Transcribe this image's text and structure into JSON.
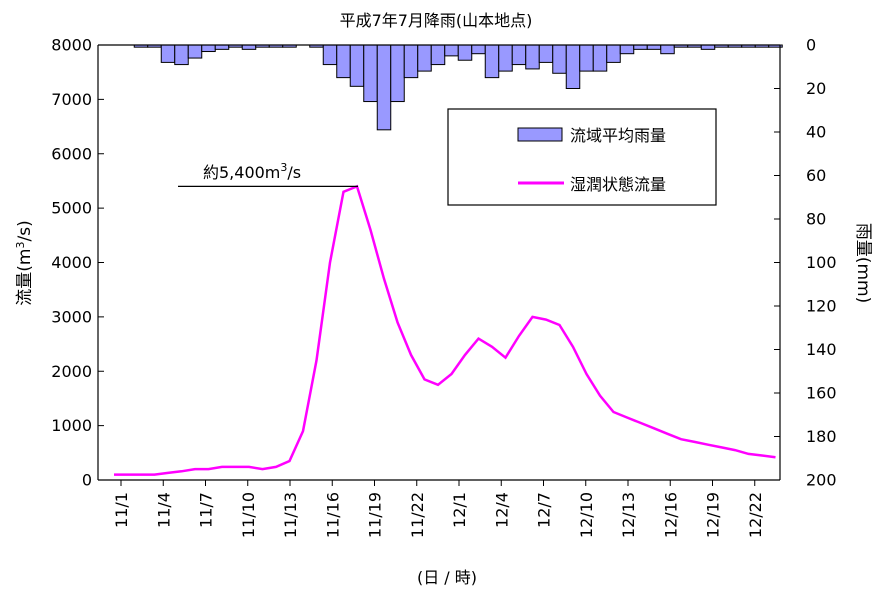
{
  "chart_data": {
    "type": "line",
    "title": "平成7年7月降雨(山本地点)",
    "xlabel": "(日 / 時)",
    "ylabel": "流量(m3/s)",
    "ylabel_parts": [
      "流量(m",
      "3",
      "/s)"
    ],
    "y2label": "雨量(mm)",
    "ylim": [
      0,
      8000
    ],
    "y_ticks": [
      0,
      1000,
      2000,
      3000,
      4000,
      5000,
      6000,
      7000,
      8000
    ],
    "y2lim": [
      0,
      200
    ],
    "y2_ticks": [
      0,
      20,
      40,
      60,
      80,
      100,
      120,
      140,
      160,
      180,
      200
    ],
    "y2_inverted": true,
    "x_ticks": [
      "11/1",
      "11/4",
      "11/7",
      "11/10",
      "11/13",
      "11/16",
      "11/19",
      "11/22",
      "12/1",
      "12/4",
      "12/7",
      "12/10",
      "12/13",
      "12/16",
      "12/19",
      "12/22"
    ],
    "grid": false,
    "legend_placement": "top-right",
    "series": [
      {
        "name": "流域平均雨量",
        "type": "bar",
        "axis": "right",
        "color": "#9999ff",
        "values": [
          0,
          0,
          1,
          1,
          8,
          9,
          6,
          3,
          2,
          1,
          2,
          1,
          1,
          1,
          0,
          1,
          9,
          15,
          19,
          26,
          39,
          26,
          15,
          12,
          9,
          5,
          7,
          4,
          15,
          12,
          9,
          11,
          8,
          13,
          20,
          12,
          12,
          8,
          4,
          2,
          2,
          4,
          1,
          1,
          2,
          1,
          1,
          1,
          1,
          1
        ]
      },
      {
        "name": "湿潤状態流量",
        "type": "line",
        "axis": "left",
        "color": "#ff00ff",
        "values": [
          100,
          100,
          100,
          100,
          130,
          160,
          200,
          200,
          240,
          240,
          240,
          200,
          240,
          350,
          900,
          2200,
          4000,
          5300,
          5400,
          4600,
          3700,
          2900,
          2300,
          1850,
          1750,
          1950,
          2300,
          2600,
          2450,
          2250,
          2650,
          3000,
          2950,
          2850,
          2450,
          1950,
          1550,
          1250,
          1150,
          1050,
          950,
          850,
          750,
          700,
          650,
          600,
          550,
          480,
          450,
          420
        ]
      }
    ],
    "annotations": [
      {
        "text": "約5,400m3/s",
        "value": 5400
      }
    ],
    "annotation_parts": [
      "約5,400m",
      "3",
      "/s"
    ]
  }
}
